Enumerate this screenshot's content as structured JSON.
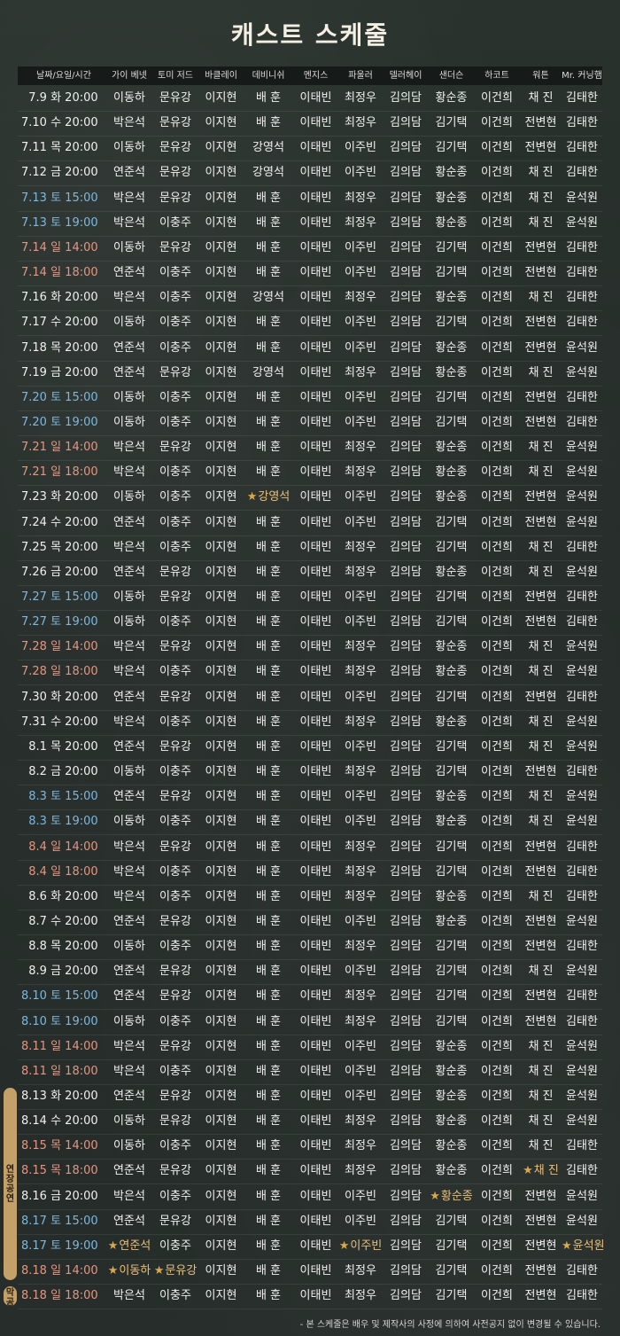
{
  "title": "캐스트 스케줄",
  "headers": [
    "날짜/요일/시간",
    "가이 베넷",
    "토미 저드",
    "바클레이",
    "데비니쉬",
    "멘지스",
    "파울러",
    "델러헤이",
    "샌더슨",
    "하코트",
    "워튼",
    "Mr. 커닝햄"
  ],
  "rows": [
    {
      "d": "7.9",
      "w": "화",
      "t": "20:00",
      "c": "w",
      "cast": [
        "이동하",
        "문유강",
        "이지현",
        "배 훈",
        "이태빈",
        "최정우",
        "김의담",
        "황순종",
        "이건희",
        "채 진",
        "김태한"
      ]
    },
    {
      "d": "7.10",
      "w": "수",
      "t": "20:00",
      "c": "w",
      "cast": [
        "박은석",
        "문유강",
        "이지현",
        "배 훈",
        "이태빈",
        "최정우",
        "김의담",
        "김기택",
        "이건희",
        "전변현",
        "김태한"
      ]
    },
    {
      "d": "7.11",
      "w": "목",
      "t": "20:00",
      "c": "w",
      "cast": [
        "이동하",
        "문유강",
        "이지현",
        "강영석",
        "이태빈",
        "이주빈",
        "김의담",
        "김기택",
        "이건희",
        "전변현",
        "김태한"
      ]
    },
    {
      "d": "7.12",
      "w": "금",
      "t": "20:00",
      "c": "w",
      "cast": [
        "연준석",
        "문유강",
        "이지현",
        "강영석",
        "이태빈",
        "이주빈",
        "김의담",
        "황순종",
        "이건희",
        "채 진",
        "김태한"
      ]
    },
    {
      "d": "7.13",
      "w": "토",
      "t": "15:00",
      "c": "b",
      "cast": [
        "박은석",
        "문유강",
        "이지현",
        "배 훈",
        "이태빈",
        "최정우",
        "김의담",
        "황순종",
        "이건희",
        "채 진",
        "윤석원"
      ]
    },
    {
      "d": "7.13",
      "w": "토",
      "t": "19:00",
      "c": "b",
      "cast": [
        "박은석",
        "이충주",
        "이지현",
        "배 훈",
        "이태빈",
        "최정우",
        "김의담",
        "황순종",
        "이건희",
        "채 진",
        "윤석원"
      ]
    },
    {
      "d": "7.14",
      "w": "일",
      "t": "14:00",
      "c": "r",
      "cast": [
        "이동하",
        "문유강",
        "이지현",
        "배 훈",
        "이태빈",
        "이주빈",
        "김의담",
        "김기택",
        "이건희",
        "전변현",
        "김태한"
      ]
    },
    {
      "d": "7.14",
      "w": "일",
      "t": "18:00",
      "c": "r",
      "cast": [
        "연준석",
        "이충주",
        "이지현",
        "배 훈",
        "이태빈",
        "이주빈",
        "김의담",
        "김기택",
        "이건희",
        "전변현",
        "김태한"
      ]
    },
    {
      "d": "7.16",
      "w": "화",
      "t": "20:00",
      "c": "w",
      "cast": [
        "박은석",
        "이충주",
        "이지현",
        "강영석",
        "이태빈",
        "최정우",
        "김의담",
        "황순종",
        "이건희",
        "채 진",
        "김태한"
      ]
    },
    {
      "d": "7.17",
      "w": "수",
      "t": "20:00",
      "c": "w",
      "cast": [
        "이동하",
        "이충주",
        "이지현",
        "배 훈",
        "이태빈",
        "이주빈",
        "김의담",
        "김기택",
        "이건희",
        "전변현",
        "김태한"
      ]
    },
    {
      "d": "7.18",
      "w": "목",
      "t": "20:00",
      "c": "w",
      "cast": [
        "연준석",
        "이충주",
        "이지현",
        "배 훈",
        "이태빈",
        "이주빈",
        "김의담",
        "황순종",
        "이건희",
        "전변현",
        "윤석원"
      ]
    },
    {
      "d": "7.19",
      "w": "금",
      "t": "20:00",
      "c": "w",
      "cast": [
        "연준석",
        "문유강",
        "이지현",
        "강영석",
        "이태빈",
        "최정우",
        "김의담",
        "황순종",
        "이건희",
        "채 진",
        "윤석원"
      ]
    },
    {
      "d": "7.20",
      "w": "토",
      "t": "15:00",
      "c": "b",
      "cast": [
        "이동하",
        "이충주",
        "이지현",
        "배 훈",
        "이태빈",
        "이주빈",
        "김의담",
        "김기택",
        "이건희",
        "전변현",
        "김태한"
      ]
    },
    {
      "d": "7.20",
      "w": "토",
      "t": "19:00",
      "c": "b",
      "cast": [
        "이동하",
        "이충주",
        "이지현",
        "배 훈",
        "이태빈",
        "이주빈",
        "김의담",
        "김기택",
        "이건희",
        "전변현",
        "김태한"
      ]
    },
    {
      "d": "7.21",
      "w": "일",
      "t": "14:00",
      "c": "r",
      "cast": [
        "박은석",
        "문유강",
        "이지현",
        "배 훈",
        "이태빈",
        "최정우",
        "김의담",
        "황순종",
        "이건희",
        "채 진",
        "윤석원"
      ]
    },
    {
      "d": "7.21",
      "w": "일",
      "t": "18:00",
      "c": "r",
      "cast": [
        "박은석",
        "이충주",
        "이지현",
        "배 훈",
        "이태빈",
        "최정우",
        "김의담",
        "황순종",
        "이건희",
        "채 진",
        "윤석원"
      ]
    },
    {
      "d": "7.23",
      "w": "화",
      "t": "20:00",
      "c": "w",
      "stars": [
        3
      ],
      "cast": [
        "이동하",
        "이충주",
        "이지현",
        "강영석",
        "이태빈",
        "이주빈",
        "김의담",
        "황순종",
        "이건희",
        "전변현",
        "윤석원"
      ]
    },
    {
      "d": "7.24",
      "w": "수",
      "t": "20:00",
      "c": "w",
      "cast": [
        "연준석",
        "이충주",
        "이지현",
        "배 훈",
        "이태빈",
        "이주빈",
        "김의담",
        "김기택",
        "이건희",
        "전변현",
        "윤석원"
      ]
    },
    {
      "d": "7.25",
      "w": "목",
      "t": "20:00",
      "c": "w",
      "cast": [
        "박은석",
        "이충주",
        "이지현",
        "배 훈",
        "이태빈",
        "최정우",
        "김의담",
        "김기택",
        "이건희",
        "채 진",
        "김태한"
      ]
    },
    {
      "d": "7.26",
      "w": "금",
      "t": "20:00",
      "c": "w",
      "cast": [
        "연준석",
        "문유강",
        "이지현",
        "배 훈",
        "이태빈",
        "최정우",
        "김의담",
        "황순종",
        "이건희",
        "채 진",
        "윤석원"
      ]
    },
    {
      "d": "7.27",
      "w": "토",
      "t": "15:00",
      "c": "b",
      "cast": [
        "이동하",
        "문유강",
        "이지현",
        "배 훈",
        "이태빈",
        "이주빈",
        "김의담",
        "김기택",
        "이건희",
        "전변현",
        "김태한"
      ]
    },
    {
      "d": "7.27",
      "w": "토",
      "t": "19:00",
      "c": "b",
      "cast": [
        "이동하",
        "이충주",
        "이지현",
        "배 훈",
        "이태빈",
        "이주빈",
        "김의담",
        "김기택",
        "이건희",
        "전변현",
        "김태한"
      ]
    },
    {
      "d": "7.28",
      "w": "일",
      "t": "14:00",
      "c": "r",
      "cast": [
        "박은석",
        "문유강",
        "이지현",
        "배 훈",
        "이태빈",
        "최정우",
        "김의담",
        "황순종",
        "이건희",
        "채 진",
        "윤석원"
      ]
    },
    {
      "d": "7.28",
      "w": "일",
      "t": "18:00",
      "c": "r",
      "cast": [
        "박은석",
        "이충주",
        "이지현",
        "배 훈",
        "이태빈",
        "최정우",
        "김의담",
        "황순종",
        "이건희",
        "채 진",
        "윤석원"
      ]
    },
    {
      "d": "7.30",
      "w": "화",
      "t": "20:00",
      "c": "w",
      "cast": [
        "연준석",
        "문유강",
        "이지현",
        "배 훈",
        "이태빈",
        "이주빈",
        "김의담",
        "김기택",
        "이건희",
        "전변현",
        "김태한"
      ]
    },
    {
      "d": "7.31",
      "w": "수",
      "t": "20:00",
      "c": "w",
      "cast": [
        "박은석",
        "이충주",
        "이지현",
        "배 훈",
        "이태빈",
        "최정우",
        "김의담",
        "황순종",
        "이건희",
        "채 진",
        "윤석원"
      ]
    },
    {
      "d": "8.1",
      "w": "목",
      "t": "20:00",
      "c": "w",
      "cast": [
        "연준석",
        "문유강",
        "이지현",
        "배 훈",
        "이태빈",
        "이주빈",
        "김의담",
        "김기택",
        "이건희",
        "채 진",
        "윤석원"
      ]
    },
    {
      "d": "8.2",
      "w": "금",
      "t": "20:00",
      "c": "w",
      "cast": [
        "이동하",
        "이충주",
        "이지현",
        "배 훈",
        "이태빈",
        "최정우",
        "김의담",
        "김기택",
        "이건희",
        "전변현",
        "김태한"
      ]
    },
    {
      "d": "8.3",
      "w": "토",
      "t": "15:00",
      "c": "b",
      "cast": [
        "연준석",
        "문유강",
        "이지현",
        "배 훈",
        "이태빈",
        "이주빈",
        "김의담",
        "황순종",
        "이건희",
        "채 진",
        "윤석원"
      ]
    },
    {
      "d": "8.3",
      "w": "토",
      "t": "19:00",
      "c": "b",
      "cast": [
        "이동하",
        "이충주",
        "이지현",
        "배 훈",
        "이태빈",
        "이주빈",
        "김의담",
        "황순종",
        "이건희",
        "채 진",
        "윤석원"
      ]
    },
    {
      "d": "8.4",
      "w": "일",
      "t": "14:00",
      "c": "r",
      "cast": [
        "박은석",
        "문유강",
        "이지현",
        "배 훈",
        "이태빈",
        "최정우",
        "김의담",
        "김기택",
        "이건희",
        "전변현",
        "김태한"
      ]
    },
    {
      "d": "8.4",
      "w": "일",
      "t": "18:00",
      "c": "r",
      "cast": [
        "박은석",
        "이충주",
        "이지현",
        "배 훈",
        "이태빈",
        "최정우",
        "김의담",
        "김기택",
        "이건희",
        "전변현",
        "김태한"
      ]
    },
    {
      "d": "8.6",
      "w": "화",
      "t": "20:00",
      "c": "w",
      "cast": [
        "박은석",
        "이충주",
        "이지현",
        "배 훈",
        "이태빈",
        "최정우",
        "김의담",
        "황순종",
        "이건희",
        "채 진",
        "김태한"
      ]
    },
    {
      "d": "8.7",
      "w": "수",
      "t": "20:00",
      "c": "w",
      "cast": [
        "연준석",
        "문유강",
        "이지현",
        "배 훈",
        "이태빈",
        "이주빈",
        "김의담",
        "황순종",
        "이건희",
        "전변현",
        "윤석원"
      ]
    },
    {
      "d": "8.8",
      "w": "목",
      "t": "20:00",
      "c": "w",
      "cast": [
        "이동하",
        "이충주",
        "이지현",
        "배 훈",
        "이태빈",
        "최정우",
        "김의담",
        "김기택",
        "이건희",
        "전변현",
        "김태한"
      ]
    },
    {
      "d": "8.9",
      "w": "금",
      "t": "20:00",
      "c": "w",
      "cast": [
        "연준석",
        "문유강",
        "이지현",
        "배 훈",
        "이태빈",
        "이주빈",
        "김의담",
        "김기택",
        "이건희",
        "채 진",
        "윤석원"
      ]
    },
    {
      "d": "8.10",
      "w": "토",
      "t": "15:00",
      "c": "b",
      "cast": [
        "연준석",
        "문유강",
        "이지현",
        "배 훈",
        "이태빈",
        "최정우",
        "김의담",
        "김기택",
        "이건희",
        "전변현",
        "김태한"
      ]
    },
    {
      "d": "8.10",
      "w": "토",
      "t": "19:00",
      "c": "b",
      "cast": [
        "이동하",
        "이충주",
        "이지현",
        "배 훈",
        "이태빈",
        "최정우",
        "김의담",
        "김기택",
        "이건희",
        "전변현",
        "김태한"
      ]
    },
    {
      "d": "8.11",
      "w": "일",
      "t": "14:00",
      "c": "r",
      "cast": [
        "박은석",
        "문유강",
        "이지현",
        "배 훈",
        "이태빈",
        "이주빈",
        "김의담",
        "황순종",
        "이건희",
        "채 진",
        "윤석원"
      ]
    },
    {
      "d": "8.11",
      "w": "일",
      "t": "18:00",
      "c": "r",
      "cast": [
        "박은석",
        "이충주",
        "이지현",
        "배 훈",
        "이태빈",
        "이주빈",
        "김의담",
        "황순종",
        "이건희",
        "채 진",
        "윤석원"
      ]
    },
    {
      "d": "8.13",
      "w": "화",
      "t": "20:00",
      "c": "w",
      "cast": [
        "연준석",
        "문유강",
        "이지현",
        "배 훈",
        "이태빈",
        "이주빈",
        "김의담",
        "황순종",
        "이건희",
        "채 진",
        "윤석원"
      ]
    },
    {
      "d": "8.14",
      "w": "수",
      "t": "20:00",
      "c": "w",
      "cast": [
        "이동하",
        "문유강",
        "이지현",
        "배 훈",
        "이태빈",
        "최정우",
        "김의담",
        "황순종",
        "이건희",
        "채 진",
        "윤석원"
      ]
    },
    {
      "d": "8.15",
      "w": "목",
      "t": "14:00",
      "c": "r",
      "cast": [
        "이동하",
        "이충주",
        "이지현",
        "배 훈",
        "이태빈",
        "최정우",
        "김의담",
        "황순종",
        "이건희",
        "채 진",
        "김태한"
      ]
    },
    {
      "d": "8.15",
      "w": "목",
      "t": "18:00",
      "c": "r",
      "stars": [
        9
      ],
      "cast": [
        "연준석",
        "문유강",
        "이지현",
        "배 훈",
        "이태빈",
        "최정우",
        "김의담",
        "황순종",
        "이건희",
        "채 진",
        "김태한"
      ]
    },
    {
      "d": "8.16",
      "w": "금",
      "t": "20:00",
      "c": "w",
      "stars": [
        7
      ],
      "cast": [
        "박은석",
        "이충주",
        "이지현",
        "배 훈",
        "이태빈",
        "이주빈",
        "김의담",
        "황순종",
        "이건희",
        "전변현",
        "윤석원"
      ]
    },
    {
      "d": "8.17",
      "w": "토",
      "t": "15:00",
      "c": "b",
      "cast": [
        "연준석",
        "문유강",
        "이지현",
        "배 훈",
        "이태빈",
        "이주빈",
        "김의담",
        "김기택",
        "이건희",
        "전변현",
        "윤석원"
      ]
    },
    {
      "d": "8.17",
      "w": "토",
      "t": "19:00",
      "c": "b",
      "stars": [
        0,
        5,
        10
      ],
      "cast": [
        "연준석",
        "이충주",
        "이지현",
        "배 훈",
        "이태빈",
        "이주빈",
        "김의담",
        "김기택",
        "이건희",
        "전변현",
        "윤석원"
      ]
    },
    {
      "d": "8.18",
      "w": "일",
      "t": "14:00",
      "c": "r",
      "stars": [
        0,
        1
      ],
      "cast": [
        "이동하",
        "문유강",
        "이지현",
        "배 훈",
        "이태빈",
        "최정우",
        "김의담",
        "김기택",
        "이건희",
        "전변현",
        "김태한"
      ]
    },
    {
      "d": "8.18",
      "w": "일",
      "t": "18:00",
      "c": "r",
      "cast": [
        "박은석",
        "이충주",
        "이지현",
        "배 훈",
        "이태빈",
        "최정우",
        "김의담",
        "김기택",
        "이건희",
        "전변현",
        "김태한"
      ]
    }
  ],
  "badges": {
    "extended": "연장공연",
    "final": "막공"
  },
  "star_glyph": "★",
  "footnote": "- 본 스케줄은 배우 및 제작사의 사정에 의하여 사전공지 없이 변경될 수 있습니다.",
  "colors": {
    "weekday": "#f0f0f0",
    "saturday": "#7fb8dc",
    "sunday_holiday": "#e39782",
    "badge": "#c3a169",
    "star": "#d8a84b"
  }
}
